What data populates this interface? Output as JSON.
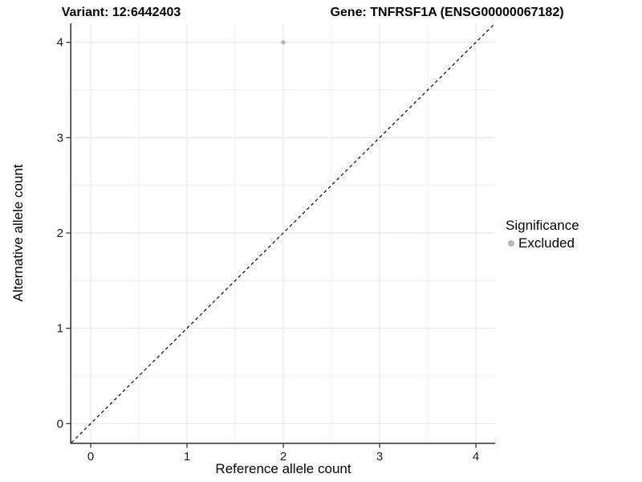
{
  "titles": {
    "variant": "Variant: 12:6442403",
    "gene": "Gene: TNFRSF1A (ENSG00000067182)"
  },
  "axes": {
    "x_label": "Reference allele count",
    "y_label": "Alternative allele count"
  },
  "legend": {
    "title": "Significance",
    "items": [
      {
        "label": "Excluded",
        "color": "#b8b8b8"
      }
    ]
  },
  "colors": {
    "background": "#ffffff",
    "axis_line": "#3c3c3c",
    "tick_mark": "#333333",
    "tick_label": "#1a1a1a",
    "grid_major": "#e4e4e4",
    "grid_minor": "#ececec",
    "identity_line": "#000000",
    "point": "#b3b3b3"
  },
  "chart_data": {
    "type": "scatter",
    "title_left": "Variant: 12:6442403",
    "title_right": "Gene: TNFRSF1A (ENSG00000067182)",
    "xlabel": "Reference allele count",
    "ylabel": "Alternative allele count",
    "xlim": [
      -0.2,
      4.2
    ],
    "ylim": [
      -0.2,
      4.2
    ],
    "x_ticks": [
      0,
      1,
      2,
      3,
      4
    ],
    "y_ticks": [
      0,
      1,
      2,
      3,
      4
    ],
    "grid": {
      "major_every": 1,
      "minor_every": 0.5,
      "visible": true
    },
    "reference_line": {
      "type": "identity",
      "slope": 1,
      "intercept": 0,
      "style": "dashed"
    },
    "legend_position": "right",
    "series": [
      {
        "name": "Excluded",
        "color": "#b3b3b3",
        "points": [
          {
            "x": 2,
            "y": 4
          }
        ]
      }
    ]
  }
}
